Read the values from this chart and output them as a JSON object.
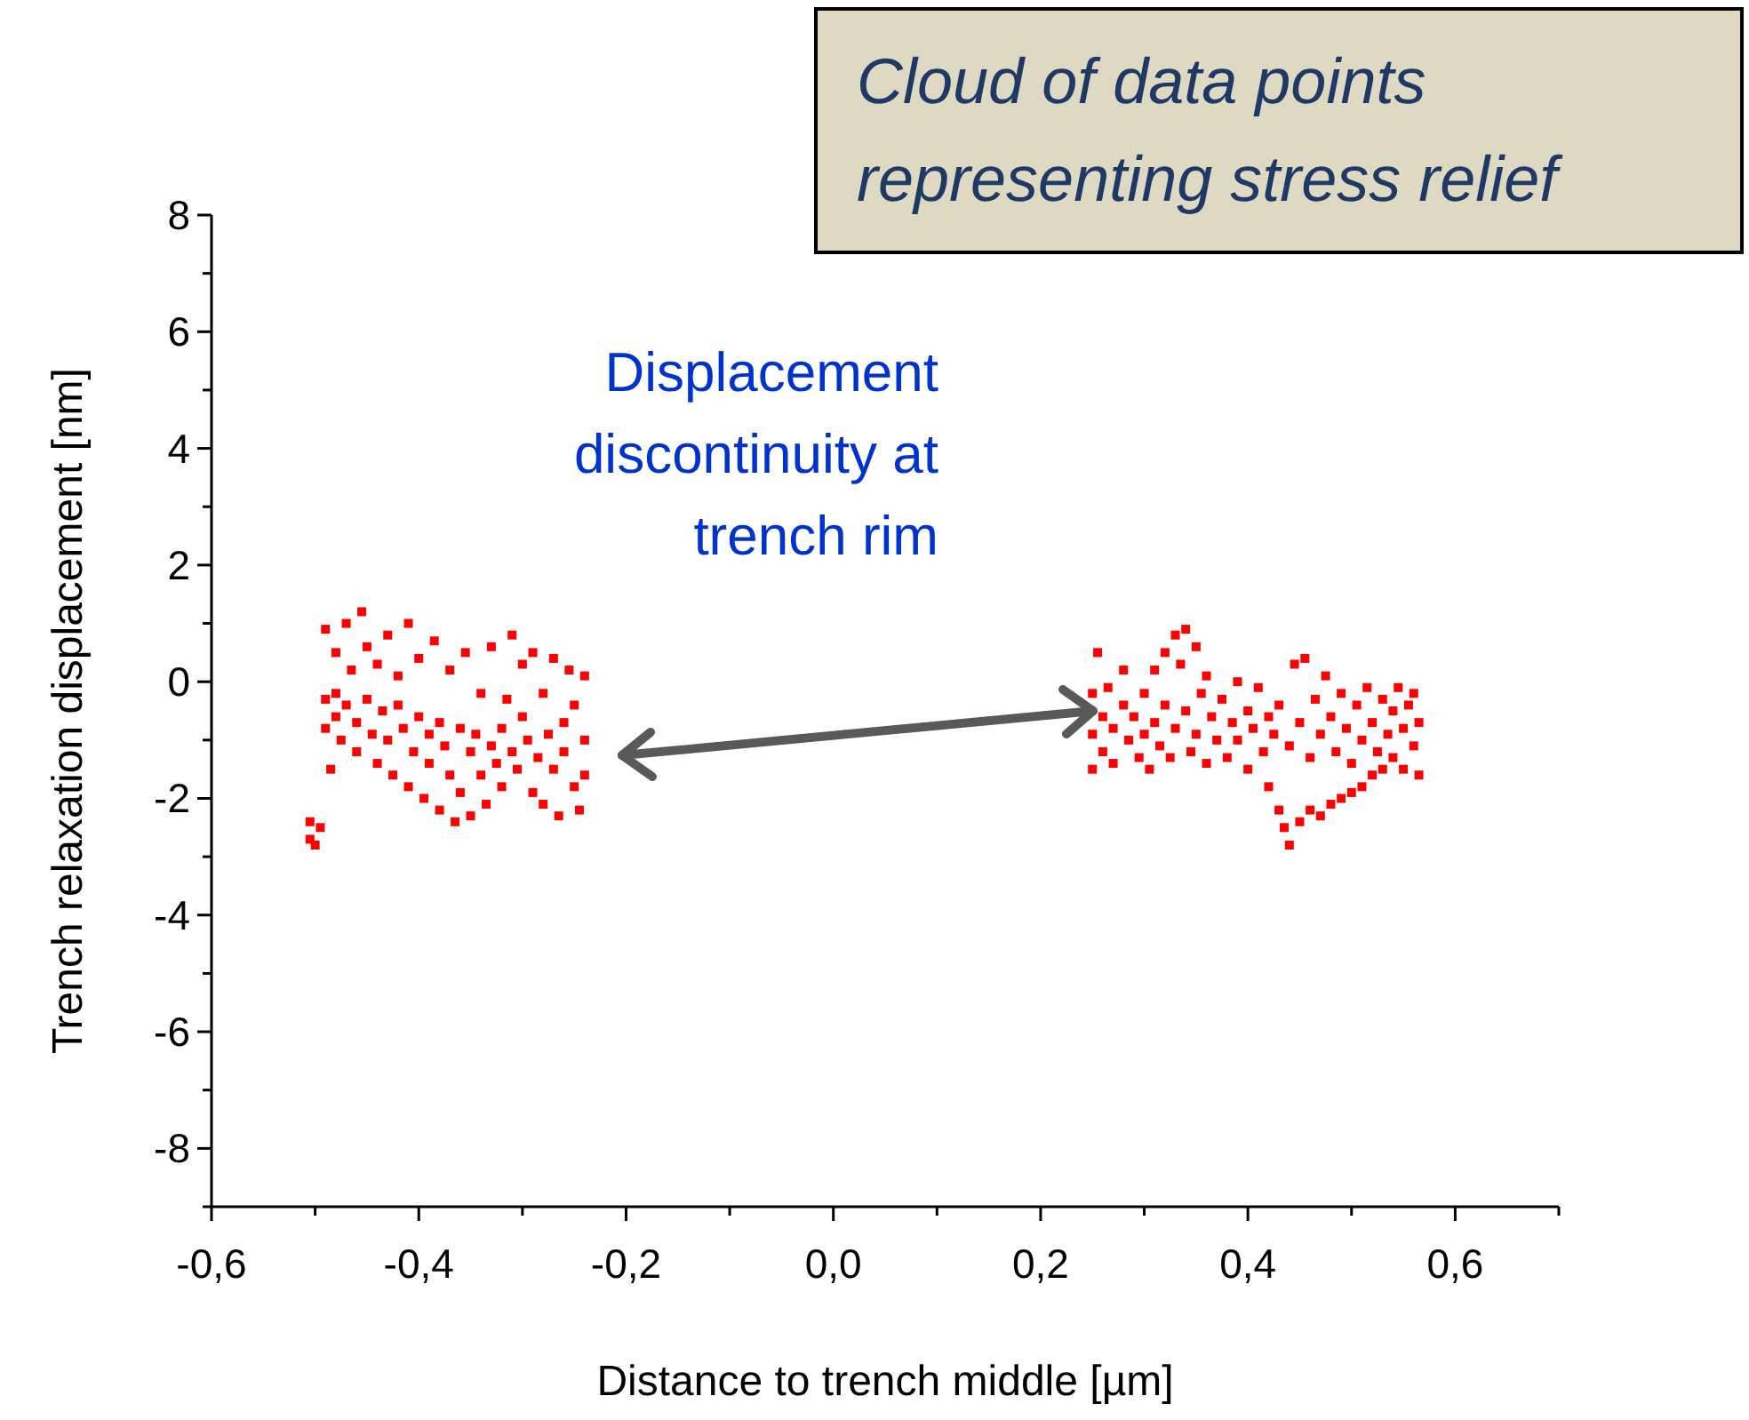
{
  "chart_data": {
    "type": "scatter",
    "xlabel": "Distance to trench middle [µm]",
    "ylabel": "Trench relaxation displacement [nm]",
    "annotations": [
      "Cloud of data points\nrepresenting stress relief",
      "Displacement\ndiscontinuity at\ntrench rim"
    ],
    "xlim": [
      -0.6,
      0.7
    ],
    "xticks": [
      {
        "value": -0.6,
        "label": "-0,6"
      },
      {
        "value": -0.5,
        "label": null
      },
      {
        "value": -0.4,
        "label": "-0,4"
      },
      {
        "value": -0.3,
        "label": null
      },
      {
        "value": -0.2,
        "label": "-0,2"
      },
      {
        "value": -0.1,
        "label": null
      },
      {
        "value": 0,
        "label": "0,0"
      },
      {
        "value": 0.1,
        "label": null
      },
      {
        "value": 0.2,
        "label": "0,2"
      },
      {
        "value": 0.3,
        "label": null
      },
      {
        "value": 0.4,
        "label": "0,4"
      },
      {
        "value": 0.5,
        "label": null
      },
      {
        "value": 0.6,
        "label": "0,6"
      },
      {
        "value": 0.7,
        "label": null
      }
    ],
    "ylim": [
      -9,
      8
    ],
    "yticks": [
      {
        "value": -9,
        "label": null
      },
      -8,
      {
        "value": -7,
        "label": null
      },
      -6,
      {
        "value": -5,
        "label": null
      },
      -4,
      {
        "value": -3,
        "label": null
      },
      -2,
      {
        "value": -1,
        "label": null
      },
      0,
      {
        "value": 1,
        "label": null
      },
      2,
      {
        "value": 3,
        "label": null
      },
      4,
      {
        "value": 5,
        "label": null
      },
      6,
      {
        "value": 7,
        "label": null
      },
      8
    ],
    "grid": false,
    "marker": "square",
    "series": [
      {
        "color": "#ff0000",
        "x": [
          -0.505,
          -0.505,
          -0.5,
          -0.495,
          -0.49,
          -0.49,
          -0.49,
          -0.485,
          -0.48,
          -0.48,
          -0.48,
          -0.475,
          -0.47,
          -0.47,
          -0.465,
          -0.46,
          -0.46,
          -0.455,
          -0.45,
          -0.45,
          -0.445,
          -0.44,
          -0.44,
          -0.435,
          -0.43,
          -0.43,
          -0.425,
          -0.42,
          -0.42,
          -0.415,
          -0.41,
          -0.41,
          -0.405,
          -0.4,
          -0.4,
          -0.395,
          -0.39,
          -0.39,
          -0.385,
          -0.38,
          -0.38,
          -0.375,
          -0.37,
          -0.37,
          -0.365,
          -0.36,
          -0.36,
          -0.355,
          -0.35,
          -0.35,
          -0.345,
          -0.34,
          -0.34,
          -0.335,
          -0.33,
          -0.33,
          -0.325,
          -0.32,
          -0.32,
          -0.315,
          -0.31,
          -0.31,
          -0.305,
          -0.3,
          -0.3,
          -0.295,
          -0.29,
          -0.29,
          -0.285,
          -0.28,
          -0.28,
          -0.275,
          -0.27,
          -0.27,
          -0.265,
          -0.26,
          -0.26,
          -0.255,
          -0.25,
          -0.25,
          -0.245,
          -0.24,
          -0.24,
          -0.24,
          0.25,
          0.25,
          0.25,
          0.255,
          0.26,
          0.26,
          0.265,
          0.27,
          0.27,
          0.28,
          0.28,
          0.285,
          0.29,
          0.295,
          0.3,
          0.3,
          0.305,
          0.31,
          0.31,
          0.315,
          0.32,
          0.32,
          0.325,
          0.33,
          0.33,
          0.335,
          0.34,
          0.34,
          0.345,
          0.35,
          0.35,
          0.355,
          0.36,
          0.36,
          0.365,
          0.37,
          0.375,
          0.38,
          0.385,
          0.39,
          0.39,
          0.4,
          0.4,
          0.405,
          0.41,
          0.415,
          0.42,
          0.42,
          0.425,
          0.43,
          0.43,
          0.435,
          0.44,
          0.44,
          0.445,
          0.45,
          0.45,
          0.455,
          0.46,
          0.46,
          0.465,
          0.47,
          0.47,
          0.475,
          0.48,
          0.48,
          0.485,
          0.49,
          0.49,
          0.495,
          0.5,
          0.5,
          0.505,
          0.51,
          0.51,
          0.515,
          0.52,
          0.52,
          0.525,
          0.53,
          0.53,
          0.535,
          0.54,
          0.54,
          0.545,
          0.55,
          0.55,
          0.555,
          0.56,
          0.56,
          0.565,
          0.565
        ],
        "values": [
          -2.4,
          -2.7,
          -2.8,
          -2.5,
          -0.3,
          -0.8,
          0.9,
          -1.5,
          -0.2,
          -0.6,
          0.5,
          -1.0,
          1.0,
          -0.4,
          0.2,
          -0.7,
          -1.2,
          1.2,
          -0.3,
          0.6,
          -0.9,
          -1.4,
          0.3,
          -0.5,
          0.8,
          -1.0,
          -1.6,
          -0.4,
          0.1,
          -0.8,
          -1.8,
          1.0,
          -1.2,
          -0.6,
          0.4,
          -2.0,
          -0.9,
          -1.4,
          0.7,
          -0.7,
          -2.2,
          -1.1,
          0.2,
          -1.6,
          -2.4,
          -0.8,
          -1.9,
          0.5,
          -1.2,
          -2.3,
          -0.9,
          -0.2,
          -1.6,
          -2.1,
          -1.1,
          0.6,
          -1.4,
          -0.8,
          -1.8,
          -0.3,
          -1.2,
          0.8,
          -1.5,
          -0.6,
          0.3,
          -1.0,
          -1.9,
          0.5,
          -1.3,
          -0.2,
          -2.1,
          -0.9,
          0.4,
          -1.5,
          -2.3,
          -0.7,
          -1.2,
          0.2,
          -1.8,
          -0.4,
          -2.2,
          -1.0,
          0.1,
          -1.6,
          -0.2,
          -0.9,
          -1.5,
          0.5,
          -0.6,
          -1.2,
          -0.1,
          -0.8,
          -1.4,
          -0.4,
          0.2,
          -1.0,
          -0.6,
          -1.3,
          -0.2,
          -0.9,
          -1.5,
          0.2,
          -0.7,
          -1.1,
          0.5,
          -0.4,
          -1.3,
          0.8,
          -0.8,
          0.3,
          0.9,
          -0.5,
          -1.2,
          0.6,
          -0.9,
          -0.2,
          0.1,
          -1.4,
          -0.6,
          -1.0,
          -0.3,
          -1.3,
          -0.7,
          0.0,
          -1.0,
          -0.5,
          -1.5,
          -0.8,
          -0.1,
          -1.2,
          -0.6,
          -1.8,
          -0.9,
          -2.2,
          -0.4,
          -2.5,
          -1.1,
          -2.8,
          0.3,
          -0.7,
          -2.4,
          0.4,
          -1.3,
          -2.2,
          -0.3,
          -0.9,
          -2.3,
          0.1,
          -0.6,
          -2.1,
          -1.2,
          -0.2,
          -2.0,
          -0.8,
          -1.4,
          -1.9,
          -0.4,
          -1.0,
          -1.8,
          -0.1,
          -0.7,
          -1.6,
          -1.2,
          -0.3,
          -1.5,
          -0.9,
          -0.5,
          -1.3,
          -0.1,
          -0.8,
          -1.5,
          -0.4,
          -1.1,
          -0.2,
          -0.7,
          -1.6
        ]
      }
    ]
  }
}
